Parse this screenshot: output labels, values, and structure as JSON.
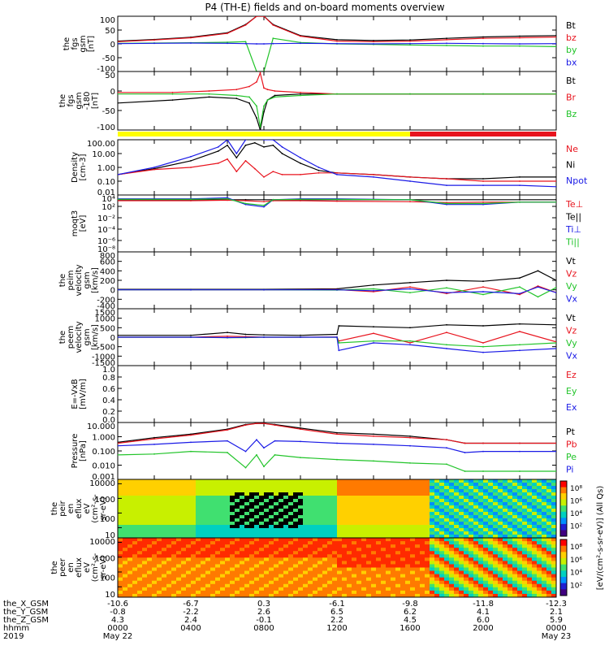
{
  "title": "P4 (TH-E) fields and on-board moments overview",
  "colors": {
    "black": "#000000",
    "red": "#e8141e",
    "green": "#22c42a",
    "blue": "#1a1ae6",
    "yellow": "#ffff00",
    "barred": "#e8141e"
  },
  "chart_data": [
    {
      "type": "line",
      "id": "fgs",
      "ylabel": [
        "the",
        "fgs",
        "gsm",
        "[nT]"
      ],
      "yticks": [
        "100",
        "50",
        "0",
        "-50",
        "-100"
      ],
      "ylim": [
        -100,
        100
      ],
      "legend": [
        {
          "label": "Bt",
          "color": "#000000"
        },
        {
          "label": "bz",
          "color": "#e8141e"
        },
        {
          "label": "by",
          "color": "#22c42a"
        },
        {
          "label": "bx",
          "color": "#1a1ae6"
        }
      ],
      "x": [
        0,
        2,
        4,
        6,
        7,
        7.6,
        8,
        8.5,
        10,
        12,
        14,
        16,
        18,
        20,
        22,
        24
      ],
      "series": [
        {
          "name": "Bt",
          "color": "#000000",
          "values": [
            10,
            16,
            24,
            40,
            70,
            100,
            100,
            70,
            30,
            15,
            12,
            14,
            20,
            25,
            28,
            30
          ]
        },
        {
          "name": "bz",
          "color": "#e8141e",
          "values": [
            8,
            14,
            22,
            38,
            68,
            100,
            100,
            68,
            28,
            10,
            8,
            10,
            15,
            20,
            22,
            25
          ]
        },
        {
          "name": "by",
          "color": "#22c42a",
          "values": [
            2,
            3,
            4,
            6,
            8,
            -100,
            -100,
            20,
            5,
            0,
            -2,
            -4,
            -6,
            -8,
            -8,
            -10
          ]
        },
        {
          "name": "bx",
          "color": "#1a1ae6",
          "values": [
            1,
            2,
            3,
            2,
            1,
            0,
            0,
            1,
            2,
            1,
            0,
            1,
            2,
            1,
            0,
            1
          ]
        }
      ]
    },
    {
      "type": "line",
      "id": "fgs_r",
      "ylabel": [
        "the",
        "fgs",
        "gsm",
        "-180",
        "[nT]"
      ],
      "yticks": [
        "50",
        "0",
        "-50",
        "-100"
      ],
      "ylim": [
        -120,
        75
      ],
      "legend": [
        {
          "label": "Bt",
          "color": "#000000"
        },
        {
          "label": "Br",
          "color": "#e8141e"
        },
        {
          "label": "Bz",
          "color": "#22c42a"
        }
      ],
      "x": [
        0,
        3,
        5,
        6.5,
        7.2,
        7.6,
        7.8,
        8,
        8.2,
        8.6,
        10,
        12,
        16,
        20,
        24
      ],
      "series": [
        {
          "name": "Bt",
          "color": "#000000",
          "values": [
            -30,
            -20,
            -10,
            -15,
            -30,
            -80,
            -120,
            -60,
            -20,
            -5,
            0,
            0,
            0,
            0,
            0
          ]
        },
        {
          "name": "Br",
          "color": "#e8141e",
          "values": [
            5,
            5,
            10,
            15,
            25,
            40,
            70,
            20,
            15,
            10,
            5,
            0,
            0,
            0,
            0
          ]
        },
        {
          "name": "Bz",
          "color": "#22c42a",
          "values": [
            0,
            0,
            0,
            -5,
            -10,
            -40,
            -110,
            -40,
            -20,
            -10,
            -5,
            0,
            0,
            0,
            0
          ]
        }
      ]
    },
    {
      "type": "line",
      "id": "density",
      "ylabel": [
        "Density",
        "[cm-3]"
      ],
      "yticks": [
        "100.00",
        "10.00",
        "1.00",
        "0.10",
        "0.01"
      ],
      "ylim": [
        0.01,
        100
      ],
      "log": true,
      "legend": [
        {
          "label": "Ne",
          "color": "#e8141e"
        },
        {
          "label": "Ni",
          "color": "#000000"
        },
        {
          "label": "Npot",
          "color": "#1a1ae6"
        }
      ],
      "x": [
        0,
        2,
        4,
        5.5,
        6,
        6.5,
        7,
        7.5,
        8,
        8.5,
        9,
        10,
        11,
        12,
        14,
        16,
        18,
        20,
        22,
        24
      ],
      "series": [
        {
          "name": "Ni",
          "color": "#000000",
          "values": [
            0.3,
            0.8,
            3,
            15,
            40,
            5,
            40,
            60,
            30,
            40,
            10,
            2,
            0.6,
            0.4,
            0.3,
            0.2,
            0.15,
            0.15,
            0.2,
            0.2
          ]
        },
        {
          "name": "Ne",
          "color": "#e8141e",
          "values": [
            0.3,
            0.7,
            1,
            2,
            4,
            0.5,
            3,
            0.8,
            0.2,
            0.5,
            0.3,
            0.3,
            0.4,
            0.4,
            0.3,
            0.2,
            0.15,
            0.1,
            0.1,
            0.1
          ]
        },
        {
          "name": "Npot",
          "color": "#1a1ae6",
          "values": [
            0.3,
            1,
            6,
            30,
            100,
            10,
            100,
            200,
            100,
            100,
            30,
            5,
            1,
            0.3,
            0.2,
            0.1,
            0.05,
            0.05,
            0.05,
            0.04
          ]
        }
      ]
    },
    {
      "type": "line",
      "id": "temp",
      "ylabel": [
        "moqt3",
        "[eV]"
      ],
      "yticks": [
        "10⁴",
        "10²",
        "10⁻²",
        "10⁻⁴",
        "10⁻⁶",
        "10⁻⁸"
      ],
      "ylim": [
        -8,
        4
      ],
      "log": true,
      "legend": [
        {
          "label": "Te⊥",
          "color": "#e8141e"
        },
        {
          "label": "Te||",
          "color": "#000000"
        },
        {
          "label": "Ti⊥",
          "color": "#1a1ae6"
        },
        {
          "label": "Ti||",
          "color": "#22c42a"
        }
      ],
      "x": [
        0,
        4,
        6,
        7,
        8,
        8.5,
        10,
        12,
        16,
        18,
        20,
        22,
        24
      ],
      "series": [
        {
          "name": "Te||",
          "color": "#000000",
          "values": [
            3,
            3,
            3,
            3,
            3,
            3,
            3,
            3,
            3,
            3,
            3,
            3,
            3
          ]
        },
        {
          "name": "Te⊥",
          "color": "#e8141e",
          "values": [
            2.8,
            2.8,
            2.9,
            2.8,
            2.6,
            2.8,
            2.8,
            2.7,
            2.6,
            2.4,
            2.5,
            2.5,
            2.5
          ]
        },
        {
          "name": "Ti⊥",
          "color": "#1a1ae6",
          "values": [
            3.2,
            3.2,
            3.4,
            2,
            1.5,
            3,
            3.2,
            3.2,
            3,
            2,
            2,
            2.5,
            2.5
          ]
        },
        {
          "name": "Ti||",
          "color": "#22c42a",
          "values": [
            3.1,
            3.1,
            3.2,
            2.2,
            1.8,
            3,
            3.1,
            3.1,
            3,
            2.2,
            2.2,
            2.5,
            2.5
          ]
        }
      ]
    },
    {
      "type": "line",
      "id": "peim",
      "ylabel": [
        "the",
        "peim",
        "velocity",
        "gsm",
        "[km/s]"
      ],
      "yticks": [
        "800",
        "600",
        "400",
        "200",
        "0",
        "-200",
        "-400"
      ],
      "ylim": [
        -400,
        800
      ],
      "legend": [
        {
          "label": "Vt",
          "color": "#000000"
        },
        {
          "label": "Vz",
          "color": "#e8141e"
        },
        {
          "label": "Vy",
          "color": "#22c42a"
        },
        {
          "label": "Vx",
          "color": "#1a1ae6"
        }
      ],
      "x": [
        0,
        4,
        8,
        12,
        14,
        16,
        18,
        20,
        22,
        23,
        24
      ],
      "series": [
        {
          "name": "Vt",
          "color": "#000000",
          "values": [
            10,
            10,
            10,
            20,
            100,
            150,
            200,
            180,
            250,
            400,
            200
          ]
        },
        {
          "name": "Vz",
          "color": "#e8141e",
          "values": [
            0,
            0,
            0,
            5,
            -40,
            60,
            -80,
            60,
            -100,
            80,
            -60
          ]
        },
        {
          "name": "Vy",
          "color": "#22c42a",
          "values": [
            0,
            0,
            0,
            -5,
            20,
            -60,
            40,
            -100,
            60,
            -150,
            50
          ]
        },
        {
          "name": "Vx",
          "color": "#1a1ae6",
          "values": [
            0,
            0,
            0,
            0,
            -20,
            20,
            -60,
            -40,
            -80,
            60,
            -60
          ]
        }
      ]
    },
    {
      "type": "line",
      "id": "peem",
      "ylabel": [
        "the",
        "peem",
        "velocity",
        "gsm",
        "[km/s]"
      ],
      "yticks": [
        "1500",
        "1000",
        "500",
        "0",
        "-500",
        "-1000",
        "-1500"
      ],
      "ylim": [
        -1500,
        1500
      ],
      "legend": [
        {
          "label": "Vt",
          "color": "#000000"
        },
        {
          "label": "Vz",
          "color": "#e8141e"
        },
        {
          "label": "Vy",
          "color": "#22c42a"
        },
        {
          "label": "Vx",
          "color": "#1a1ae6"
        }
      ],
      "x": [
        0,
        4,
        6,
        7,
        8,
        10,
        12,
        12.1,
        14,
        16,
        18,
        20,
        22,
        24
      ],
      "series": [
        {
          "name": "Vt",
          "color": "#000000",
          "values": [
            100,
            100,
            250,
            150,
            120,
            100,
            150,
            600,
            550,
            500,
            650,
            600,
            700,
            650
          ]
        },
        {
          "name": "Vz",
          "color": "#e8141e",
          "values": [
            0,
            0,
            50,
            30,
            0,
            0,
            10,
            -200,
            200,
            -300,
            250,
            -300,
            300,
            -250
          ]
        },
        {
          "name": "Vy",
          "color": "#22c42a",
          "values": [
            0,
            0,
            -30,
            -20,
            0,
            0,
            -10,
            -300,
            -200,
            -200,
            -400,
            -500,
            -400,
            -300
          ]
        },
        {
          "name": "Vx",
          "color": "#1a1ae6",
          "values": [
            0,
            0,
            -20,
            -10,
            0,
            0,
            0,
            -700,
            -300,
            -400,
            -600,
            -800,
            -700,
            -600
          ]
        }
      ]
    },
    {
      "type": "line",
      "id": "efield",
      "ylabel": [
        "E=-VxB",
        "[mV/m]"
      ],
      "yticks": [
        "1.0",
        "0.8",
        "0.6",
        "0.4",
        "0.2",
        "0.0"
      ],
      "ylim": [
        0,
        1
      ],
      "legend": [
        {
          "label": "Ez",
          "color": "#e8141e"
        },
        {
          "label": "Ey",
          "color": "#22c42a"
        },
        {
          "label": "Ex",
          "color": "#1a1ae6"
        }
      ],
      "x": [],
      "series": []
    },
    {
      "type": "line",
      "id": "pressure",
      "ylabel": [
        "Pressure",
        "[nPa]"
      ],
      "yticks": [
        "10.000",
        "1.000",
        "0.100",
        "0.010",
        "0.001"
      ],
      "ylim": [
        0.0004,
        30
      ],
      "log": true,
      "legend": [
        {
          "label": "Pt",
          "color": "#000000"
        },
        {
          "label": "Pb",
          "color": "#e8141e"
        },
        {
          "label": "Pe",
          "color": "#22c42a"
        },
        {
          "label": "Pi",
          "color": "#1a1ae6"
        }
      ],
      "x": [
        0,
        2,
        4,
        6,
        7,
        7.6,
        8,
        8.6,
        10,
        12,
        14,
        16,
        18,
        19,
        20,
        22,
        24
      ],
      "series": [
        {
          "name": "Pt",
          "color": "#000000",
          "values": [
            0.6,
            1.5,
            3,
            8,
            20,
            25,
            25,
            20,
            10,
            4,
            3,
            2,
            1,
            0.5,
            0.5,
            0.5,
            0.5
          ]
        },
        {
          "name": "Pb",
          "color": "#e8141e",
          "values": [
            0.5,
            1.2,
            2.5,
            7,
            18,
            25,
            25,
            18,
            8,
            3,
            2,
            1.5,
            1,
            0.5,
            0.5,
            0.5,
            0.5
          ]
        },
        {
          "name": "Pi",
          "color": "#1a1ae6",
          "values": [
            0.3,
            0.4,
            0.6,
            0.8,
            0.1,
            1,
            0.2,
            0.8,
            0.7,
            0.5,
            0.4,
            0.3,
            0.2,
            0.08,
            0.1,
            0.1,
            0.1
          ]
        },
        {
          "name": "Pe",
          "color": "#22c42a",
          "values": [
            0.05,
            0.06,
            0.1,
            0.08,
            0.004,
            0.05,
            0.005,
            0.05,
            0.03,
            0.02,
            0.015,
            0.01,
            0.008,
            0.002,
            0.002,
            0.002,
            0.002
          ]
        }
      ]
    },
    {
      "type": "heatmap",
      "id": "peir",
      "ylabel": [
        "the",
        "peir",
        "en",
        "eflux",
        "eV",
        "(cm²-s-",
        "sr-eV)"
      ],
      "yticks": [
        "10000",
        "1000",
        "100",
        "10"
      ],
      "colorbar_ticks": [
        "10⁸",
        "10⁶",
        "10⁴",
        "10²"
      ]
    },
    {
      "type": "heatmap",
      "id": "peer",
      "ylabel": [
        "the",
        "peer",
        "en",
        "eflux",
        "eV",
        "(cm²-s-",
        "sr-eV)"
      ],
      "yticks": [
        "10000",
        "1000",
        "100",
        "10"
      ],
      "colorbar_ticks": [
        "10⁸",
        "10⁶",
        "10⁴",
        "10²"
      ]
    }
  ],
  "colorbar_label": "[eV/(cm²-s-sr-eV)] (All Qs)",
  "status_bar": {
    "split_hour": 16
  },
  "xaxis": {
    "row_labels": [
      "the_X_GSM",
      "the_Y_GSM",
      "the_Z_GSM",
      "hhmm",
      "2019"
    ],
    "ticks": [
      {
        "hour": 0,
        "values": [
          "-10.6",
          "-0.8",
          "4.3",
          "0000",
          "May 22"
        ]
      },
      {
        "hour": 4,
        "values": [
          "-6.7",
          "-2.2",
          "2.4",
          "0400",
          ""
        ]
      },
      {
        "hour": 8,
        "values": [
          "0.3",
          "2.6",
          "-0.1",
          "0800",
          ""
        ]
      },
      {
        "hour": 12,
        "values": [
          "-6.1",
          "6.5",
          "2.2",
          "1200",
          ""
        ]
      },
      {
        "hour": 16,
        "values": [
          "-9.8",
          "6.2",
          "4.5",
          "1600",
          ""
        ]
      },
      {
        "hour": 20,
        "values": [
          "-11.8",
          "4.1",
          "6.0",
          "2000",
          ""
        ]
      },
      {
        "hour": 24,
        "values": [
          "-12.3",
          "2.1",
          "5.9",
          "0000",
          "May 23"
        ]
      }
    ]
  }
}
